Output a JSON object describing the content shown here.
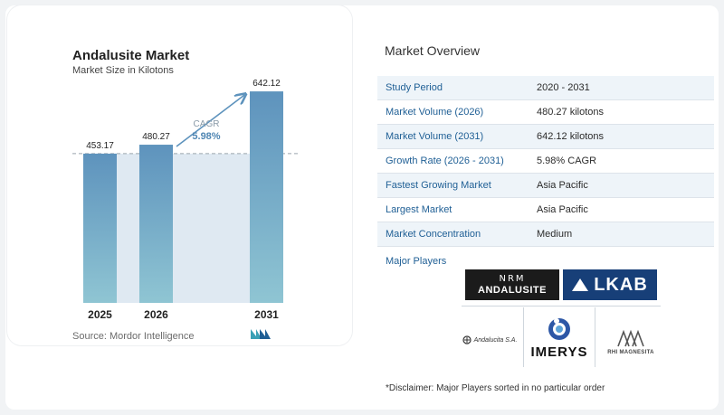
{
  "chart_data": {
    "type": "bar",
    "title": "Andalusite Market",
    "subtitle": "Market Size in Kilotons",
    "categories": [
      "2025",
      "2026",
      "2031"
    ],
    "values": [
      453.17,
      480.27,
      642.12
    ],
    "value_labels": [
      "453.17",
      "480.27",
      "642.12"
    ],
    "ylim": [
      0,
      700
    ],
    "cagr": {
      "label": "CAGR",
      "value": "5.98%"
    },
    "colors": {
      "bar_top": "#5e93bd",
      "bar_bottom": "#8fc5d3",
      "band": "#dfe9f2",
      "arrow": "#5e93bd",
      "dashed": "#9aa5ad"
    },
    "grid": false,
    "legend": "none"
  },
  "source": "Source:  Mordor Intelligence",
  "overview": {
    "title": "Market Overview",
    "rows": [
      {
        "label": "Study Period",
        "value": "2020 - 2031"
      },
      {
        "label": "Market Volume (2026)",
        "value": "480.27 kilotons"
      },
      {
        "label": "Market Volume (2031)",
        "value": "642.12 kilotons"
      },
      {
        "label": "Growth Rate (2026 - 2031)",
        "value": "5.98% CAGR"
      },
      {
        "label": "Fastest Growing Market",
        "value": "Asia Pacific"
      },
      {
        "label": "Largest Market",
        "value": "Asia Pacific"
      },
      {
        "label": "Market Concentration",
        "value": "Medium"
      }
    ]
  },
  "players": {
    "label": "Major Players",
    "logos": {
      "nrm_top": "NRM",
      "nrm_bottom": "ANDALUSITE",
      "lkab": "LKAB",
      "imerys": "IMERYS",
      "andalucita": "Andalucita S.A.",
      "rhi": "RHI MAGNESITA"
    }
  },
  "disclaimer": "*Disclaimer: Major Players sorted in no particular order"
}
